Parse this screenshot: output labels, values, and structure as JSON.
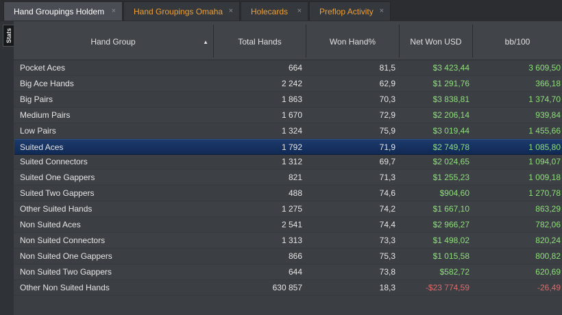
{
  "tabs": [
    {
      "label": "Hand Groupings Holdem",
      "active": true
    },
    {
      "label": "Hand Groupings Omaha",
      "active": false
    },
    {
      "label": "Holecards",
      "active": false
    },
    {
      "label": "Preflop Activity",
      "active": false
    }
  ],
  "close_glyph": "×",
  "side_tab": {
    "label": "Stats"
  },
  "columns": {
    "hand_group": "Hand Group",
    "total_hands": "Total Hands",
    "won_hand_pct": "Won Hand%",
    "net_won_usd": "Net Won USD",
    "bb100": "bb/100"
  },
  "sort_indicator": "▲",
  "colors": {
    "positive": "#8fe07a",
    "negative": "#e06a6a",
    "tab_text": "#f0a030",
    "selection": "#1c3a6b"
  },
  "rows": [
    {
      "name": "Pocket Aces",
      "total": "664",
      "won": "81,5",
      "net": "$3 423,44",
      "bb": "3 609,50",
      "sign": "pos"
    },
    {
      "name": "Big Ace Hands",
      "total": "2 242",
      "won": "62,9",
      "net": "$1 291,76",
      "bb": "366,18",
      "sign": "pos"
    },
    {
      "name": "Big Pairs",
      "total": "1 863",
      "won": "70,3",
      "net": "$3 838,81",
      "bb": "1 374,70",
      "sign": "pos"
    },
    {
      "name": "Medium Pairs",
      "total": "1 670",
      "won": "72,9",
      "net": "$2 206,14",
      "bb": "939,84",
      "sign": "pos"
    },
    {
      "name": "Low Pairs",
      "total": "1 324",
      "won": "75,9",
      "net": "$3 019,44",
      "bb": "1 455,66",
      "sign": "pos"
    },
    {
      "name": "Suited Aces",
      "total": "1 792",
      "won": "71,9",
      "net": "$2 749,78",
      "bb": "1 085,80",
      "sign": "pos",
      "selected": true
    },
    {
      "name": "Suited Connectors",
      "total": "1 312",
      "won": "69,7",
      "net": "$2 024,65",
      "bb": "1 094,07",
      "sign": "pos"
    },
    {
      "name": "Suited One Gappers",
      "total": "821",
      "won": "71,3",
      "net": "$1 255,23",
      "bb": "1 009,18",
      "sign": "pos"
    },
    {
      "name": "Suited Two Gappers",
      "total": "488",
      "won": "74,6",
      "net": "$904,60",
      "bb": "1 270,78",
      "sign": "pos"
    },
    {
      "name": "Other Suited Hands",
      "total": "1 275",
      "won": "74,2",
      "net": "$1 667,10",
      "bb": "863,29",
      "sign": "pos"
    },
    {
      "name": "Non Suited Aces",
      "total": "2 541",
      "won": "74,4",
      "net": "$2 966,27",
      "bb": "782,06",
      "sign": "pos"
    },
    {
      "name": "Non Suited Connectors",
      "total": "1 313",
      "won": "73,3",
      "net": "$1 498,02",
      "bb": "820,24",
      "sign": "pos"
    },
    {
      "name": "Non Suited One Gappers",
      "total": "866",
      "won": "75,3",
      "net": "$1 015,58",
      "bb": "800,82",
      "sign": "pos"
    },
    {
      "name": "Non Suited Two Gappers",
      "total": "644",
      "won": "73,8",
      "net": "$582,72",
      "bb": "620,69",
      "sign": "pos"
    },
    {
      "name": "Other Non Suited Hands",
      "total": "630 857",
      "won": "18,3",
      "net": "-$23 774,59",
      "bb": "-26,49",
      "sign": "neg"
    }
  ]
}
